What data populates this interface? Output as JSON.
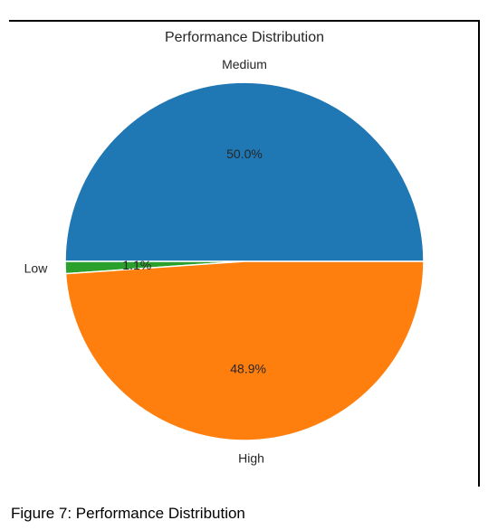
{
  "chart_data": {
    "type": "pie",
    "title": "Performance Distribution",
    "categories": [
      "Medium",
      "Low",
      "High"
    ],
    "values": [
      50.0,
      1.1,
      48.9
    ],
    "percent_labels": [
      "50.0%",
      "1.1%",
      "48.9%"
    ],
    "colors": [
      "#1f77b4",
      "#2ca02c",
      "#ff7f0e"
    ],
    "start_angle": "0 degrees (3 o'clock), counter-clockwise",
    "legend": "none"
  },
  "caption": "Figure 7: Performance Distribution"
}
